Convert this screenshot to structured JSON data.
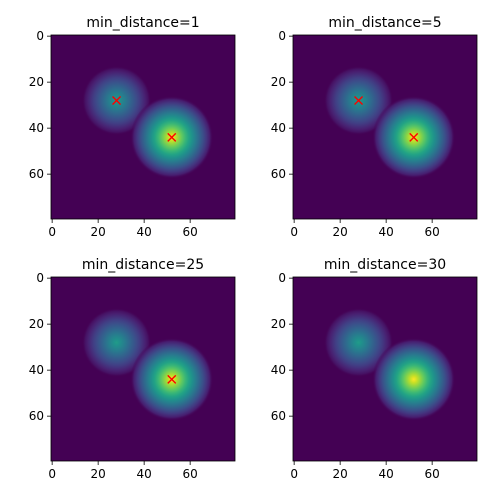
{
  "figure": {
    "background": "#ffffff",
    "axes_color": "#000000"
  },
  "chart_data": [
    {
      "type": "heatmap",
      "title": "min_distance=1",
      "xlabel": "",
      "ylabel": "",
      "image_size": [
        80,
        80
      ],
      "xlim": [
        -0.5,
        79.5
      ],
      "ylim": [
        79.5,
        -0.5
      ],
      "x_ticks": [
        0,
        20,
        40,
        60
      ],
      "y_ticks": [
        0,
        20,
        40,
        60
      ],
      "colormap": "viridis",
      "background_color": "#440154",
      "blobs": [
        {
          "center_x": 28,
          "center_y": 28,
          "radius": 15,
          "peak": 0.55
        },
        {
          "center_x": 52,
          "center_y": 44,
          "radius": 18,
          "peak": 1.0
        }
      ],
      "bridge": {
        "from": [
          28,
          28
        ],
        "to": [
          52,
          44
        ],
        "width": 3,
        "level": 0.42
      },
      "peaks": [
        {
          "x": 28,
          "y": 28
        },
        {
          "x": 52,
          "y": 44
        }
      ],
      "marker": {
        "symbol": "x",
        "color": "#ff0000"
      },
      "grid": false
    },
    {
      "type": "heatmap",
      "title": "min_distance=5",
      "xlabel": "",
      "ylabel": "",
      "image_size": [
        80,
        80
      ],
      "xlim": [
        -0.5,
        79.5
      ],
      "ylim": [
        79.5,
        -0.5
      ],
      "x_ticks": [
        0,
        20,
        40,
        60
      ],
      "y_ticks": [
        0,
        20,
        40,
        60
      ],
      "colormap": "viridis",
      "background_color": "#440154",
      "blobs": [
        {
          "center_x": 28,
          "center_y": 28,
          "radius": 15,
          "peak": 0.55
        },
        {
          "center_x": 52,
          "center_y": 44,
          "radius": 18,
          "peak": 1.0
        }
      ],
      "bridge": {
        "from": [
          28,
          28
        ],
        "to": [
          52,
          44
        ],
        "width": 3,
        "level": 0.42
      },
      "peaks": [
        {
          "x": 28,
          "y": 28
        },
        {
          "x": 52,
          "y": 44
        }
      ],
      "marker": {
        "symbol": "x",
        "color": "#ff0000"
      },
      "grid": false
    },
    {
      "type": "heatmap",
      "title": "min_distance=25",
      "xlabel": "",
      "ylabel": "",
      "image_size": [
        80,
        80
      ],
      "xlim": [
        -0.5,
        79.5
      ],
      "ylim": [
        79.5,
        -0.5
      ],
      "x_ticks": [
        0,
        20,
        40,
        60
      ],
      "y_ticks": [
        0,
        20,
        40,
        60
      ],
      "colormap": "viridis",
      "background_color": "#440154",
      "blobs": [
        {
          "center_x": 28,
          "center_y": 28,
          "radius": 15,
          "peak": 0.55
        },
        {
          "center_x": 52,
          "center_y": 44,
          "radius": 18,
          "peak": 1.0
        }
      ],
      "bridge": {
        "from": [
          28,
          28
        ],
        "to": [
          52,
          44
        ],
        "width": 3,
        "level": 0.42
      },
      "peaks": [
        {
          "x": 52,
          "y": 44
        }
      ],
      "marker": {
        "symbol": "x",
        "color": "#ff0000"
      },
      "grid": false
    },
    {
      "type": "heatmap",
      "title": "min_distance=30",
      "xlabel": "",
      "ylabel": "",
      "image_size": [
        80,
        80
      ],
      "xlim": [
        -0.5,
        79.5
      ],
      "ylim": [
        79.5,
        -0.5
      ],
      "x_ticks": [
        0,
        20,
        40,
        60
      ],
      "y_ticks": [
        0,
        20,
        40,
        60
      ],
      "colormap": "viridis",
      "background_color": "#440154",
      "blobs": [
        {
          "center_x": 28,
          "center_y": 28,
          "radius": 15,
          "peak": 0.55
        },
        {
          "center_x": 52,
          "center_y": 44,
          "radius": 18,
          "peak": 1.0
        }
      ],
      "bridge": {
        "from": [
          28,
          28
        ],
        "to": [
          52,
          44
        ],
        "width": 3,
        "level": 0.42
      },
      "peaks": [],
      "marker": {
        "symbol": "x",
        "color": "#ff0000"
      },
      "grid": false
    }
  ]
}
